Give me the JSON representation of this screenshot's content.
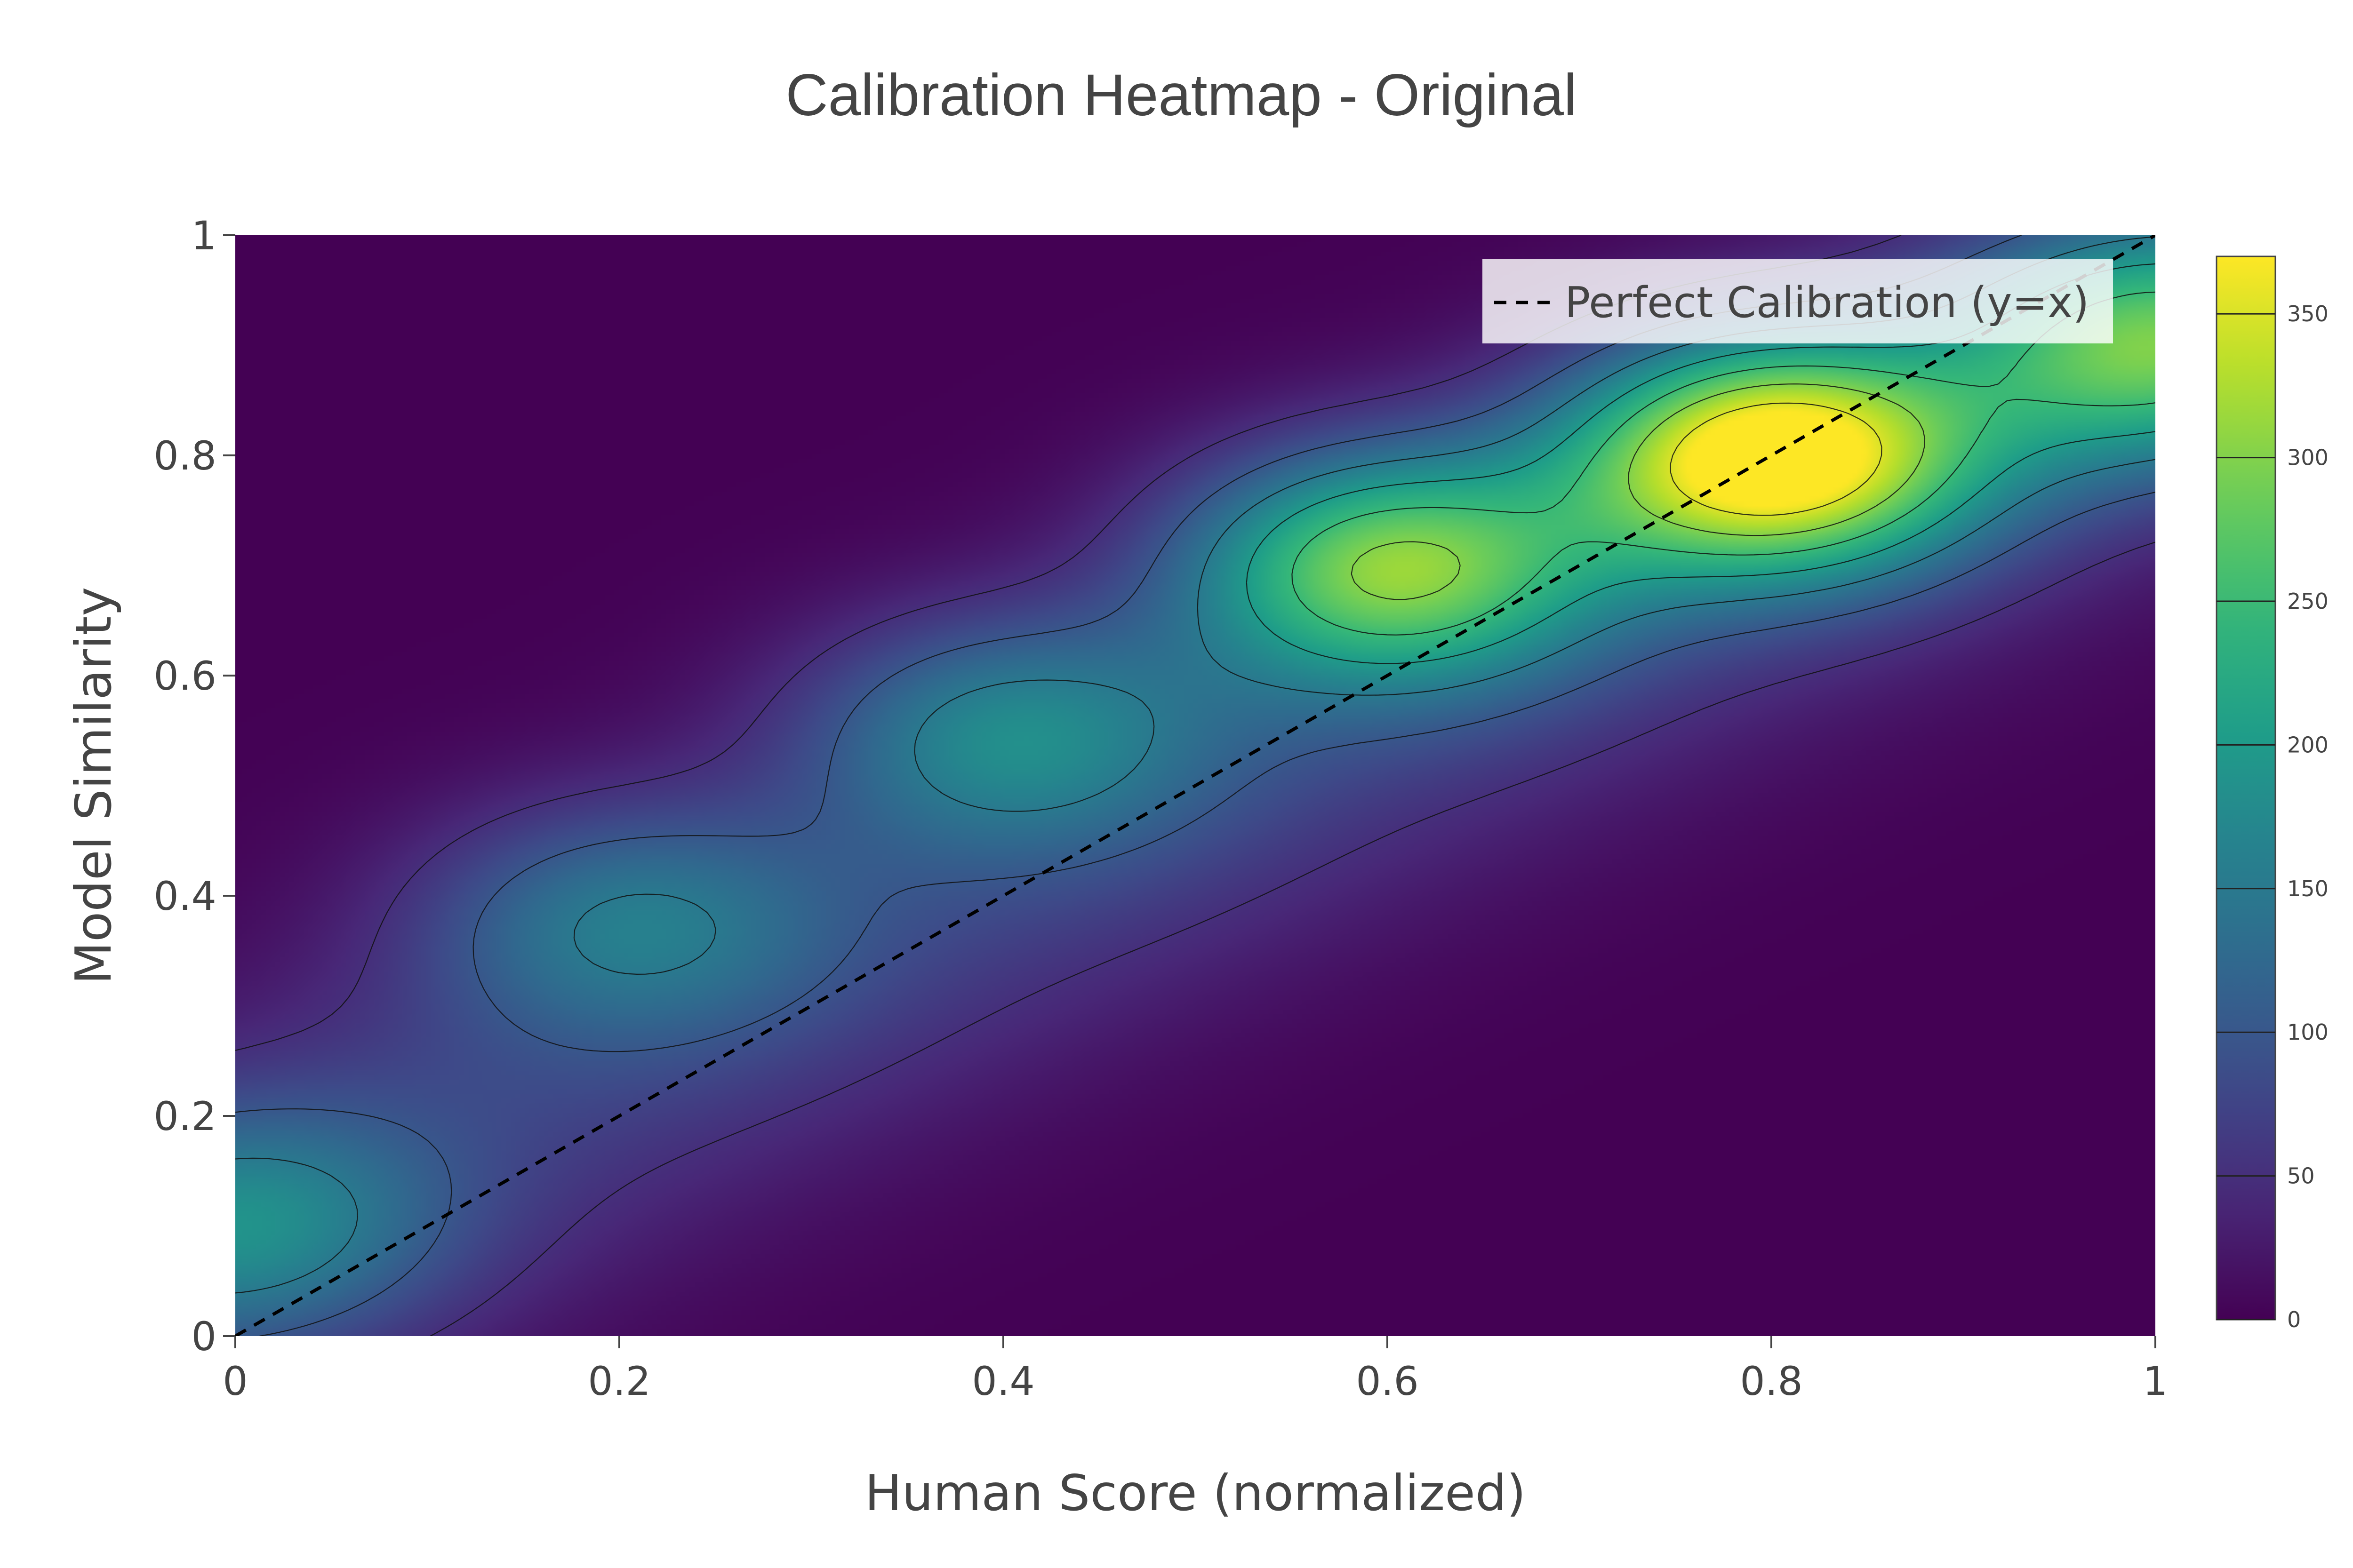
{
  "chart_data": {
    "type": "heatmap",
    "title": "Calibration Heatmap - Original",
    "xlabel": "Human Score (normalized)",
    "ylabel": "Model Similarity",
    "xlim": [
      0,
      1
    ],
    "ylim": [
      0,
      1
    ],
    "x_ticks": [
      "0",
      "0.2",
      "0.4",
      "0.6",
      "0.8",
      "1"
    ],
    "x_tick_values": [
      0,
      0.2,
      0.4,
      0.6,
      0.8,
      1
    ],
    "y_ticks": [
      "0",
      "0.2",
      "0.4",
      "0.6",
      "0.8",
      "1"
    ],
    "y_tick_values": [
      0,
      0.2,
      0.4,
      0.6,
      0.8,
      1
    ],
    "colorscale": "Viridis",
    "zlim": [
      0,
      370
    ],
    "colorbar_ticks": [
      "0",
      "50",
      "100",
      "150",
      "200",
      "250",
      "300",
      "350"
    ],
    "colorbar_tick_values": [
      0,
      50,
      100,
      150,
      200,
      250,
      300,
      350
    ],
    "contour_levels": [
      50,
      100,
      150,
      200,
      250,
      300,
      350
    ],
    "density_peaks": [
      {
        "x": 0.0,
        "y": 0.1,
        "z": 120
      },
      {
        "x": 0.2,
        "y": 0.38,
        "z": 110
      },
      {
        "x": 0.4,
        "y": 0.55,
        "z": 135
      },
      {
        "x": 0.6,
        "y": 0.7,
        "z": 260
      },
      {
        "x": 0.8,
        "y": 0.8,
        "z": 355
      },
      {
        "x": 1.0,
        "y": 0.9,
        "z": 225
      }
    ],
    "series": [
      {
        "name": "Perfect Calibration (y=x)",
        "type": "line",
        "dash": "dash",
        "color": "#000000",
        "x": [
          0,
          1
        ],
        "y": [
          0,
          1
        ]
      }
    ],
    "legend_position": "top-right",
    "grid": false
  }
}
